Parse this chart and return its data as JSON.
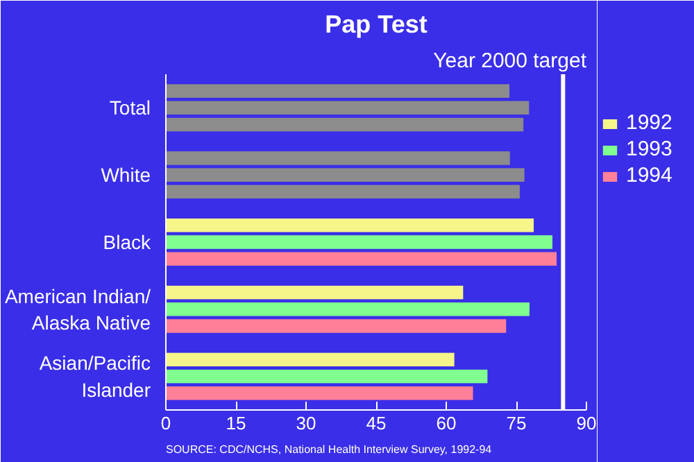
{
  "chart_data": {
    "type": "bar",
    "orientation": "horizontal",
    "title": "Pap Test",
    "categories": [
      "Total",
      "White",
      "Black",
      "American Indian/\nAlaska Native",
      "Asian/Pacific\nIslander"
    ],
    "series": [
      {
        "name": "1992",
        "color": "#f5f58a",
        "colors": [
          "#8c8c8c",
          "#8c8c8c",
          "#f5f58a",
          "#f5f58a",
          "#f5f58a"
        ],
        "values": [
          73.6,
          73.7,
          78.8,
          63.7,
          61.8
        ]
      },
      {
        "name": "1993",
        "color": "#80ff90",
        "colors": [
          "#8c8c8c",
          "#8c8c8c",
          "#80ff90",
          "#80ff90",
          "#80ff90"
        ],
        "values": [
          77.8,
          76.8,
          82.8,
          77.9,
          68.9
        ]
      },
      {
        "name": "1994",
        "color": "#ff8098",
        "colors": [
          "#8c8c8c",
          "#8c8c8c",
          "#ff8098",
          "#ff8098",
          "#ff8098"
        ],
        "values": [
          76.6,
          75.8,
          83.7,
          72.9,
          65.8
        ]
      }
    ],
    "xlim": [
      0,
      90
    ],
    "xticks": [
      0,
      15,
      30,
      45,
      60,
      75,
      90
    ],
    "ref_lines": [
      {
        "axis": "x",
        "value": 85,
        "label": "Year 2000 target",
        "color": "#ffffff"
      }
    ],
    "legend": "right",
    "grid": false,
    "annotations": [
      "SOURCE: CDC/NCHS, National Health Interview Survey, 1992-94"
    ]
  }
}
